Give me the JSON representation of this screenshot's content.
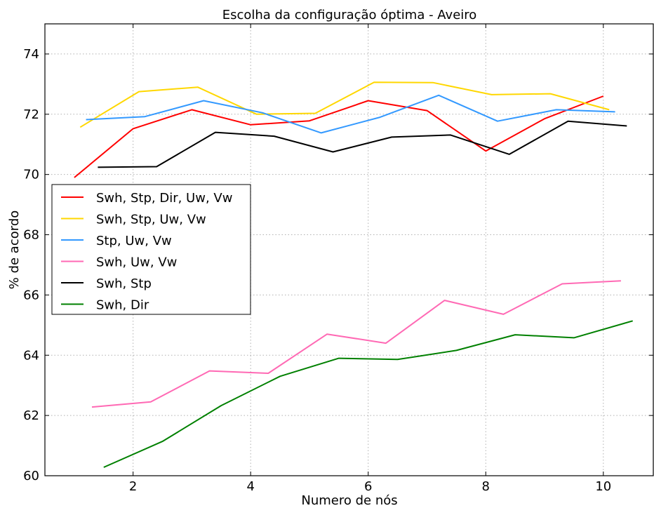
{
  "chart_data": {
    "type": "line",
    "title": "Escolha da configuração óptima - Aveiro",
    "xlabel": "Numero de nós",
    "ylabel": "% de acordo",
    "xlim": [
      0.5,
      10.85
    ],
    "ylim": [
      60,
      75
    ],
    "xticks": [
      2,
      4,
      6,
      8,
      10
    ],
    "yticks": [
      60,
      62,
      64,
      66,
      68,
      70,
      72,
      74
    ],
    "grid": true,
    "legend_position": "center-left",
    "series": [
      {
        "name": "Swh, Stp, Dir, Uw, Vw",
        "color": "#ff0000",
        "x": [
          1,
          2,
          3,
          4,
          5,
          6,
          7,
          8,
          9,
          10
        ],
        "y": [
          69.9,
          71.52,
          72.15,
          71.65,
          71.78,
          72.45,
          72.12,
          70.78,
          71.85,
          72.6
        ]
      },
      {
        "name": "Swh, Stp, Uw, Vw",
        "color": "#ffd700",
        "x": [
          1.1,
          2.1,
          3.1,
          4.1,
          5.1,
          6.1,
          7.1,
          8.1,
          9.1,
          10.1
        ],
        "y": [
          71.57,
          72.75,
          72.9,
          72.0,
          72.03,
          73.06,
          73.05,
          72.65,
          72.68,
          72.15
        ]
      },
      {
        "name": "Stp, Uw, Vw",
        "color": "#3399ff",
        "x": [
          1.2,
          2.2,
          3.2,
          4.2,
          5.2,
          6.2,
          7.2,
          8.2,
          9.2,
          10.2
        ],
        "y": [
          71.82,
          71.92,
          72.45,
          72.05,
          71.38,
          71.9,
          72.63,
          71.77,
          72.15,
          72.08
        ]
      },
      {
        "name": "Swh, Uw, Vw",
        "color": "#ff69b4",
        "x": [
          1.3,
          2.3,
          3.3,
          4.3,
          5.3,
          6.3,
          7.3,
          8.3,
          9.3,
          10.3
        ],
        "y": [
          62.28,
          62.45,
          63.48,
          63.4,
          64.7,
          64.4,
          65.82,
          65.36,
          66.37,
          66.47
        ]
      },
      {
        "name": "Swh, Stp",
        "color": "#000000",
        "x": [
          1.4,
          2.4,
          3.4,
          4.4,
          5.4,
          6.4,
          7.4,
          8.4,
          9.4,
          10.4
        ],
        "y": [
          70.24,
          70.26,
          71.4,
          71.27,
          70.75,
          71.24,
          71.31,
          70.67,
          71.77,
          71.61
        ]
      },
      {
        "name": "Swh, Dir",
        "color": "#008000",
        "x": [
          1.5,
          2.5,
          3.5,
          4.5,
          5.5,
          6.5,
          7.5,
          8.5,
          9.5,
          10.5
        ],
        "y": [
          60.28,
          61.14,
          62.33,
          63.3,
          63.9,
          63.86,
          64.16,
          64.68,
          64.58,
          65.14
        ]
      }
    ]
  }
}
